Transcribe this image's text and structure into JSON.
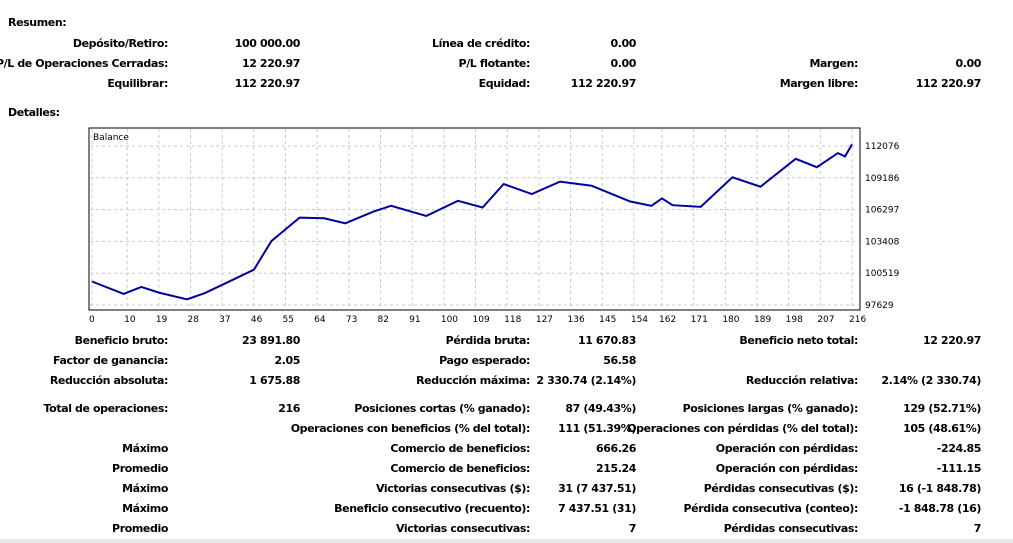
{
  "summary": {
    "title": "Resumen:",
    "rows": [
      [
        {
          "label": "Depósito/Retiro:",
          "value": "100 000.00"
        },
        {
          "label": "Línea de crédito:",
          "value": "0.00"
        },
        {
          "label": "",
          "value": ""
        }
      ],
      [
        {
          "label": "P/L de Operaciones Cerradas:",
          "value": "12 220.97"
        },
        {
          "label": "P/L flotante:",
          "value": "0.00"
        },
        {
          "label": "Margen:",
          "value": "0.00"
        }
      ],
      [
        {
          "label": "Equilibrar:",
          "value": "112 220.97"
        },
        {
          "label": "Equidad:",
          "value": "112 220.97"
        },
        {
          "label": "Margen libre:",
          "value": "112 220.97"
        }
      ]
    ]
  },
  "details": {
    "title": "Detalles:",
    "rows": [
      [
        {
          "label": "Beneficio bruto:",
          "value": "23 891.80"
        },
        {
          "label": "Pérdida bruta:",
          "value": "11 670.83"
        },
        {
          "label": "Beneficio neto total:",
          "value": "12 220.97"
        }
      ],
      [
        {
          "label": "Factor de ganancia:",
          "value": "2.05"
        },
        {
          "label": "Pago esperado:",
          "value": "56.58"
        },
        {
          "label": "",
          "value": ""
        }
      ],
      [
        {
          "label": "Reducción absoluta:",
          "value": "1 675.88"
        },
        {
          "label": "Reducción máxima:",
          "value": "2 330.74 (2.14%)"
        },
        {
          "label": "Reducción relativa:",
          "value": "2.14% (2 330.74)"
        }
      ],
      [
        {
          "label": "Total de operaciones:",
          "value": "216"
        },
        {
          "label": "Posiciones cortas (% ganado):",
          "value": "87 (49.43%)"
        },
        {
          "label": "Posiciones largas (% ganado):",
          "value": "129 (52.71%)"
        }
      ],
      [
        {
          "label": "",
          "value": ""
        },
        {
          "label": "Operaciones con beneficios (% del total):",
          "value": "111 (51.39%)"
        },
        {
          "label": "Operaciones con pérdidas (% del total):",
          "value": "105 (48.61%)"
        }
      ],
      [
        {
          "label": "Máximo",
          "value": ""
        },
        {
          "label": "Comercio de beneficios:",
          "value": "666.26"
        },
        {
          "label": "Operación con pérdidas:",
          "value": "-224.85"
        }
      ],
      [
        {
          "label": "Promedio",
          "value": ""
        },
        {
          "label": "Comercio de beneficios:",
          "value": "215.24"
        },
        {
          "label": "Operación con pérdidas:",
          "value": "-111.15"
        }
      ],
      [
        {
          "label": "Máximo",
          "value": ""
        },
        {
          "label": "Victorias consecutivas ($):",
          "value": "31 (7 437.51)"
        },
        {
          "label": "Pérdidas consecutivas ($):",
          "value": "16 (-1 848.78)"
        }
      ],
      [
        {
          "label": "Máximo",
          "value": ""
        },
        {
          "label": "Beneficio consecutivo (recuento):",
          "value": "7 437.51 (31)"
        },
        {
          "label": "Pérdida consecutiva (conteo):",
          "value": "-1 848.78 (16)"
        }
      ],
      [
        {
          "label": "Promedio",
          "value": ""
        },
        {
          "label": "Victorias consecutivas:",
          "value": "7"
        },
        {
          "label": "Pérdidas consecutivas:",
          "value": "7"
        }
      ]
    ]
  },
  "chart_data": {
    "type": "line",
    "title": "Balance",
    "xlabel": "",
    "ylabel": "",
    "x_ticks": [
      0,
      10,
      19,
      28,
      37,
      46,
      55,
      64,
      73,
      82,
      91,
      100,
      109,
      118,
      127,
      136,
      145,
      154,
      162,
      171,
      180,
      189,
      198,
      207,
      216
    ],
    "y_ticks": [
      97629,
      100519,
      103408,
      106297,
      109186,
      112076
    ],
    "xlim": [
      0,
      217
    ],
    "ylim": [
      97629,
      112850
    ],
    "grid": true,
    "color": "#0000a0",
    "series": [
      {
        "name": "Balance",
        "x": [
          0,
          9,
          14,
          19,
          27,
          32,
          38,
          46,
          51,
          59,
          66,
          72,
          80,
          85,
          95,
          104,
          111,
          117,
          125,
          133,
          142,
          153,
          159,
          162,
          165,
          173,
          182,
          190,
          200,
          206,
          212,
          214,
          216
        ],
        "y": [
          99767,
          98637,
          99278,
          98759,
          98148,
          98698,
          99614,
          100836,
          103432,
          105570,
          105509,
          105051,
          106120,
          106639,
          105723,
          107097,
          106486,
          108624,
          107708,
          108838,
          108472,
          107036,
          106639,
          107311,
          106700,
          106547,
          109235,
          108380,
          110915,
          110151,
          111434,
          111128,
          112221
        ]
      }
    ]
  }
}
